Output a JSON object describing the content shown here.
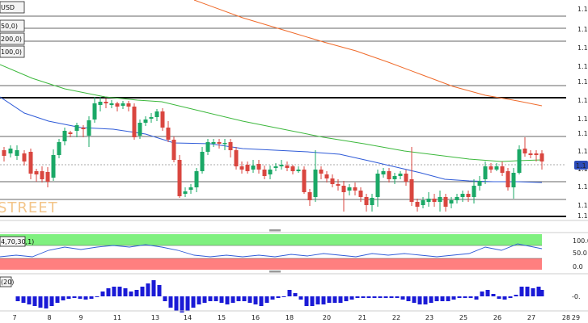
{
  "chart_data": {
    "type": "candlestick",
    "symbol_label": "USD",
    "indicator_labels": [
      "50,0)",
      "200,0)",
      "100,0)"
    ],
    "stoch_label": "4,70,30,1)",
    "vol_label": "(20)",
    "watermark": "STREET",
    "price_axis": {
      "ticks": [
        "1.1",
        "1.1",
        "1.1",
        "1.1",
        "1.1",
        "1.1",
        "1.1",
        "1.1",
        "1.1",
        "1.1",
        "1.1",
        "1.1",
        "1.1"
      ],
      "current_price_label": "1.1"
    },
    "stoch_axis": {
      "ticks": [
        "100.0",
        "50.0",
        "0.0"
      ]
    },
    "osc_axis": {
      "ticks": [
        "-0."
      ]
    },
    "x_axis": {
      "ticks": [
        "7",
        "8",
        "9",
        "11",
        "13",
        "14",
        "15",
        "16",
        "18",
        "20",
        "21",
        "22",
        "23",
        "25",
        "26",
        "27",
        "28",
        "29"
      ]
    },
    "colors": {
      "bull": "#1aa866",
      "bear": "#d9463f",
      "sma50": "#2f5bd8",
      "sma100": "#3cb83c",
      "sma200": "#ef6a2a",
      "stoch_line": "#2f5bd8",
      "overbought_fill": "#7ff07f",
      "oversold_fill": "#ff7f7f",
      "histogram": "#1a1ad6"
    }
  }
}
